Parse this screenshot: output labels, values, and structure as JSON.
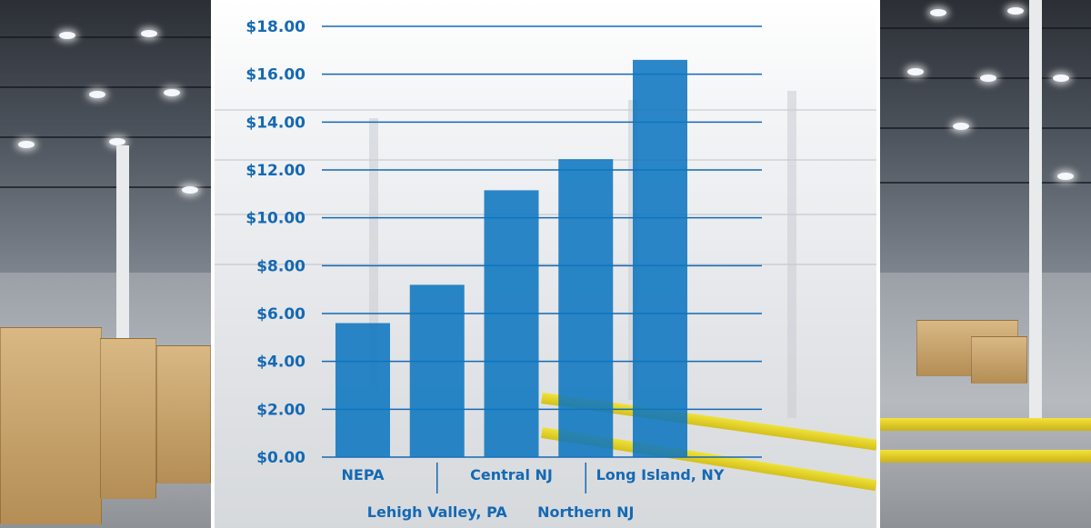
{
  "colors": {
    "bar": "#0e76bf",
    "gridline": "#1569b3",
    "label": "#1569b3"
  },
  "chart_data": {
    "type": "bar",
    "categories": [
      "NEPA",
      "Lehigh Valley, PA",
      "Central NJ",
      "Northern NJ",
      "Long Island, NY"
    ],
    "values": [
      5.6,
      7.2,
      11.15,
      12.45,
      16.6
    ],
    "ylim": [
      0,
      18
    ],
    "yticks": [
      "$0.00",
      "$2.00",
      "$4.00",
      "$6.00",
      "$8.00",
      "$10.00",
      "$12.00",
      "$14.00",
      "$16.00",
      "$18.00"
    ],
    "grid": true,
    "title": "",
    "xlabel": "",
    "ylabel": ""
  }
}
